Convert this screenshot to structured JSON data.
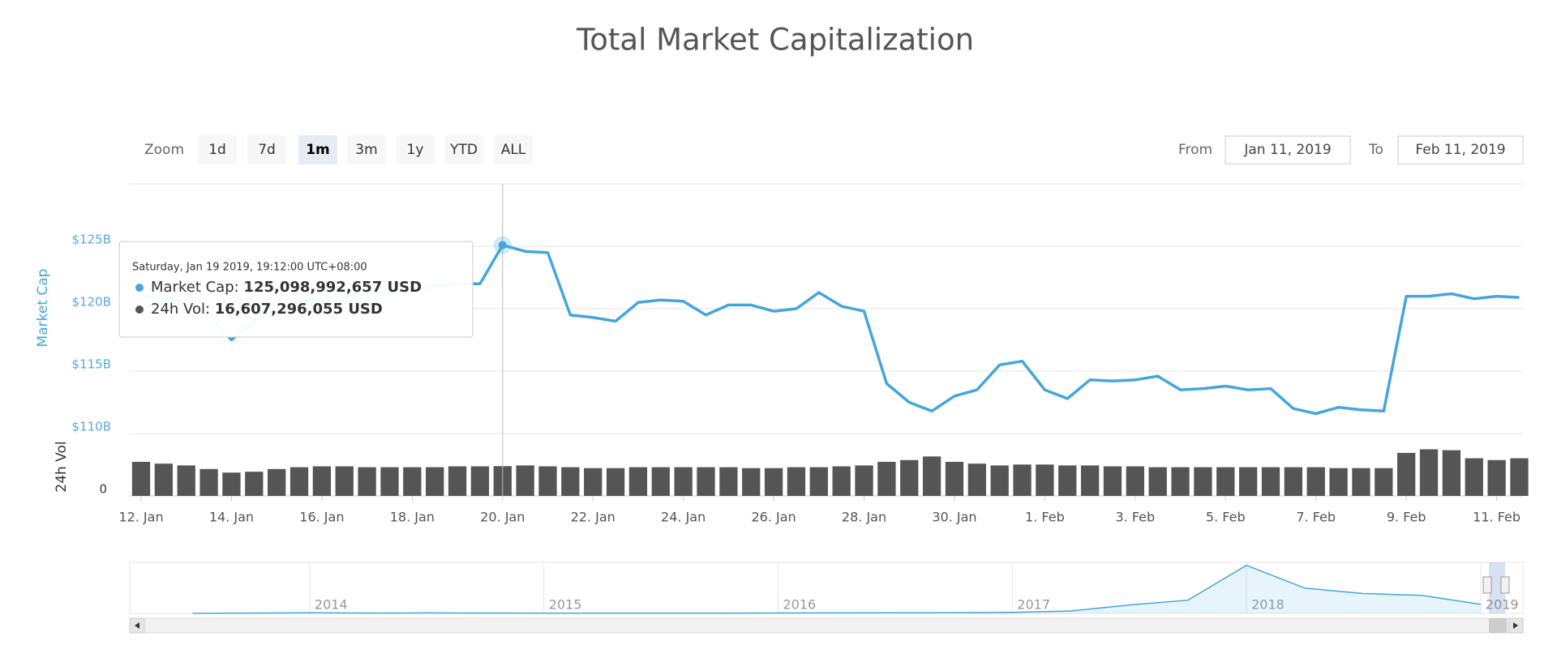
{
  "chart_data": {
    "type": "line",
    "title": "Total Market Capitalization",
    "zoom": {
      "label": "Zoom",
      "buttons": [
        "1d",
        "7d",
        "1m",
        "3m",
        "1y",
        "YTD",
        "ALL"
      ],
      "selected": 2
    },
    "range": {
      "from_label": "From",
      "from": "Jan 11, 2019",
      "to_label": "To",
      "to": "Feb 11, 2019"
    },
    "y_title": "Market Cap",
    "categories": [
      "12. Jan",
      null,
      null,
      null,
      "14. Jan",
      null,
      null,
      null,
      "16. Jan",
      null,
      null,
      null,
      "18. Jan",
      null,
      null,
      null,
      "20. Jan",
      null,
      null,
      null,
      "22. Jan",
      null,
      null,
      null,
      "24. Jan",
      null,
      null,
      null,
      "26. Jan",
      null,
      null,
      null,
      "28. Jan",
      null,
      null,
      null,
      "30. Jan",
      null,
      null,
      null,
      "1. Feb",
      null,
      null,
      null,
      "3. Feb",
      null,
      null,
      null,
      "5. Feb",
      null,
      null,
      null,
      "7. Feb",
      null,
      null,
      null,
      "9. Feb",
      null,
      null,
      null,
      "11. Feb",
      null
    ],
    "series": [
      {
        "name": "Market Cap",
        "color": "#44a6dc",
        "values": [
          121.0,
          120.8,
          120.5,
          119.5,
          117.5,
          119.0,
          120.0,
          120.5,
          120.8,
          121.0,
          121.2,
          121.3,
          121.5,
          121.8,
          122.0,
          122.0,
          125.1,
          124.6,
          124.5,
          119.5,
          119.3,
          119.0,
          120.5,
          120.7,
          120.6,
          119.5,
          120.3,
          120.3,
          119.8,
          120.0,
          121.3,
          120.2,
          119.8,
          114.0,
          112.5,
          111.8,
          113.0,
          113.5,
          115.5,
          115.8,
          113.5,
          112.8,
          114.3,
          114.2,
          114.3,
          114.6,
          113.5,
          113.6,
          113.8,
          113.5,
          113.6,
          112.0,
          111.6,
          112.1,
          111.9,
          111.8,
          121.0,
          121.0,
          121.2,
          120.8,
          121.0,
          120.9
        ]
      }
    ],
    "ylim": [
      110,
      130
    ],
    "yticks": [
      {
        "value": 110,
        "label": "$110B"
      },
      {
        "value": 115,
        "label": "$115B"
      },
      {
        "value": 120,
        "label": "$120B"
      },
      {
        "value": 125,
        "label": "$125B"
      }
    ],
    "grid": true,
    "volume": {
      "title": "24h Vol",
      "color": "#555555",
      "ylim": [
        0,
        33
      ],
      "yticks": [
        0
      ],
      "values": [
        19,
        18,
        17,
        15,
        13,
        13.5,
        15,
        16,
        16.5,
        16.5,
        16,
        16,
        16,
        16,
        16.5,
        16.5,
        16.6,
        17,
        16.5,
        16,
        15.5,
        15.5,
        16,
        16,
        16,
        16,
        16,
        15.5,
        15.5,
        16,
        16,
        16.5,
        17,
        19,
        20,
        22,
        19,
        18,
        17,
        17.5,
        17.5,
        17,
        17,
        16.5,
        16.5,
        16,
        16,
        16,
        16,
        16,
        16,
        16,
        16,
        15.5,
        15.5,
        15.5,
        24,
        26,
        25.5,
        21,
        20,
        21
      ]
    },
    "tooltip": {
      "header": "Saturday, Jan 19 2019, 19:12:00 UTC+08:00",
      "rows": [
        {
          "label": "Market Cap:",
          "value": "125,098,992,657 USD"
        },
        {
          "label": "24h Vol:",
          "value": "16,607,296,055 USD"
        }
      ]
    },
    "navigator": {
      "color": "#44a6dc",
      "ylim": [
        0,
        850
      ],
      "categories": [
        null,
        null,
        "2014",
        null,
        null,
        null,
        "2015",
        null,
        null,
        null,
        "2016",
        null,
        null,
        null,
        "2017",
        null,
        null,
        null,
        "2018",
        null,
        null,
        null,
        "2019"
      ],
      "values": [
        1.5,
        5,
        10,
        6,
        8,
        5,
        4,
        3.5,
        4,
        4.5,
        7,
        8,
        10,
        12,
        17,
        40,
        140,
        220,
        800,
        420,
        330,
        300,
        150
      ]
    }
  }
}
